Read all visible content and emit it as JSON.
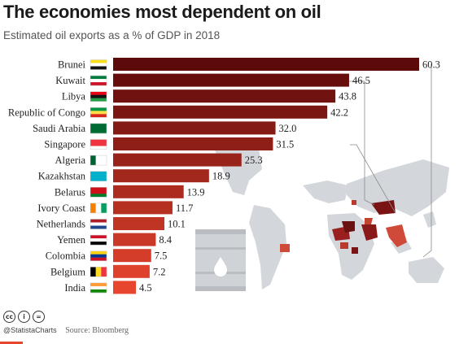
{
  "title": "The economies most dependent on oil",
  "subtitle": "Estimated oil exports as a % of GDP in 2018",
  "footer": {
    "handle": "@StatistaCharts",
    "source": "Source: Bloomberg"
  },
  "colors": {
    "bar_darkest": "#5c0a0a",
    "bar_lightest": "#e8452f",
    "map_land": "#d3d6da",
    "barrel": "#cfd2d6",
    "accent": "#e8452f"
  },
  "icons": [
    "creative-commons-icon",
    "attribution-icon",
    "no-derivatives-icon",
    "oil-barrel-icon",
    "oil-drop-icon",
    "world-map-icon"
  ],
  "chart_data": {
    "type": "bar",
    "orientation": "horizontal",
    "title": "The economies most dependent on oil",
    "subtitle": "Estimated oil exports as a % of GDP in 2018",
    "categories": [
      "Brunei",
      "Kuwait",
      "Libya",
      "Republic of Congo",
      "Saudi Arabia",
      "Singapore",
      "Algeria",
      "Kazakhstan",
      "Belarus",
      "Ivory Coast",
      "Netherlands",
      "Yemen",
      "Colombia",
      "Belgium",
      "India"
    ],
    "values": [
      60.3,
      46.5,
      43.8,
      42.2,
      32.0,
      31.5,
      25.3,
      18.9,
      13.9,
      11.7,
      10.1,
      8.4,
      7.5,
      7.2,
      4.5
    ],
    "value_labels": [
      "60.3",
      "46.5",
      "43.8",
      "42.2",
      "32.0",
      "31.5",
      "25.3",
      "18.9",
      "13.9",
      "11.7",
      "10.1",
      "8.4",
      "7.5",
      "7.2",
      "4.5"
    ],
    "xlim": [
      0,
      60.3
    ],
    "grid": false,
    "legend": "none"
  }
}
